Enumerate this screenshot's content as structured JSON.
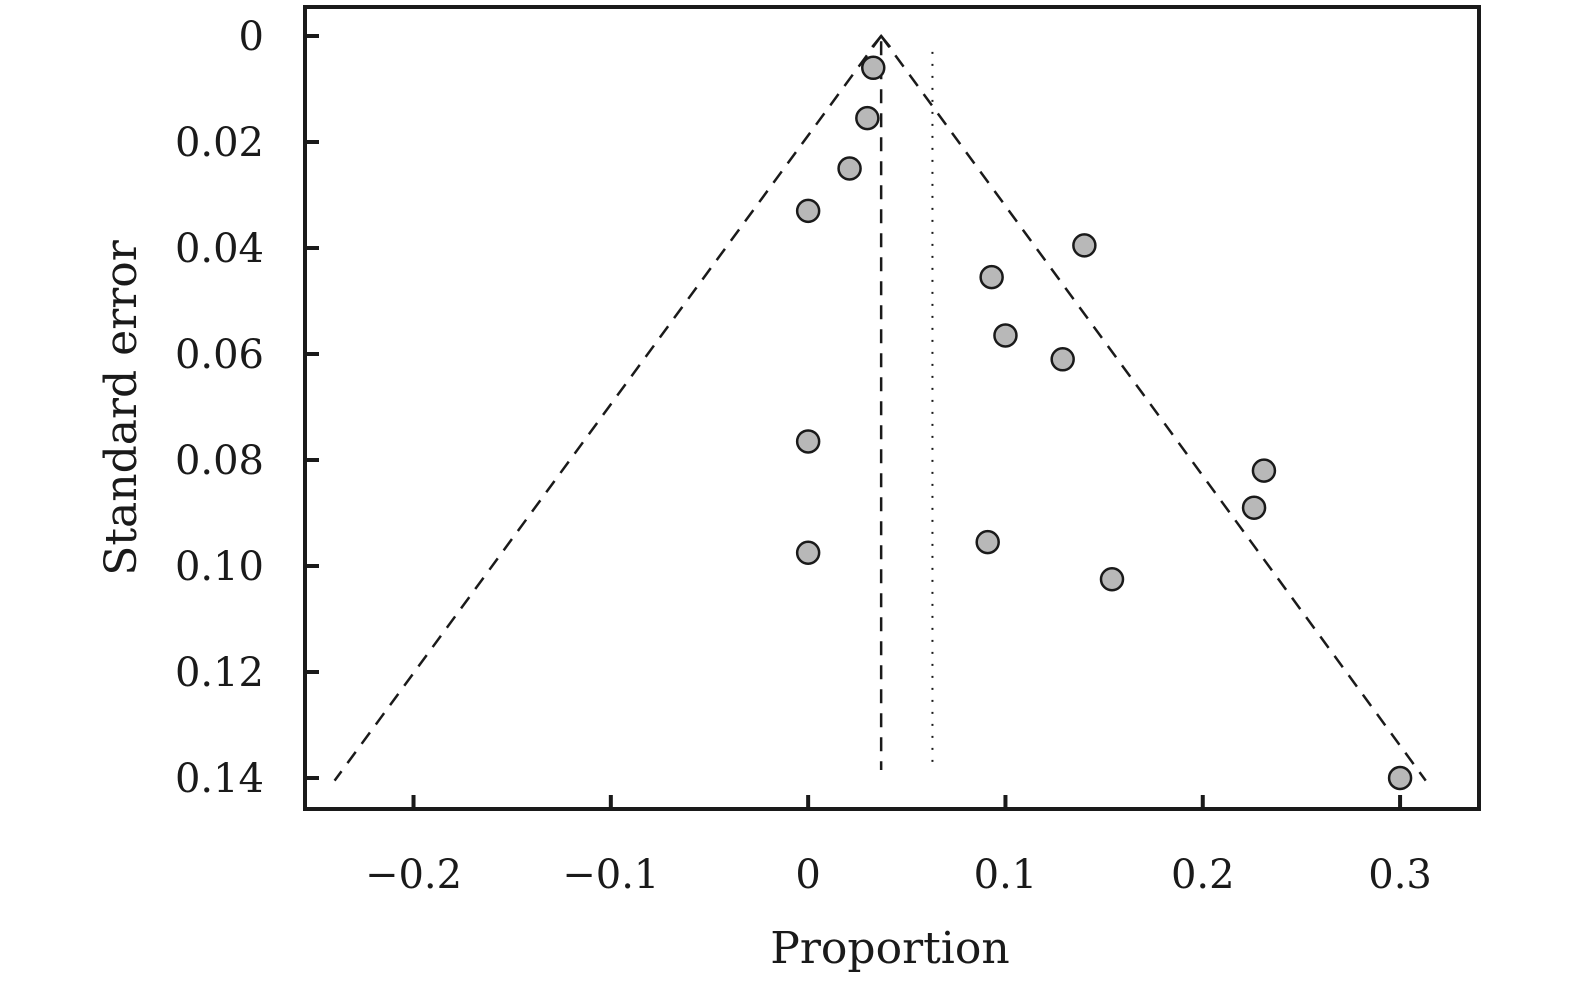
{
  "chart_data": {
    "type": "scatter",
    "title": "",
    "xlabel": "Proportion",
    "ylabel": "Standard error",
    "xlim": [
      -0.255,
      0.34
    ],
    "ylim": [
      0,
      0.146
    ],
    "y_inverted": true,
    "grid": false,
    "x_ticks": [
      {
        "value": -0.2,
        "label": "−0.2"
      },
      {
        "value": -0.1,
        "label": "−0.1"
      },
      {
        "value": 0,
        "label": "0"
      },
      {
        "value": 0.1,
        "label": "0.1"
      },
      {
        "value": 0.2,
        "label": "0.2"
      },
      {
        "value": 0.3,
        "label": "0.3"
      }
    ],
    "y_ticks": [
      {
        "value": 0,
        "label": "0"
      },
      {
        "value": 0.02,
        "label": "0.02"
      },
      {
        "value": 0.04,
        "label": "0.04"
      },
      {
        "value": 0.06,
        "label": "0.06"
      },
      {
        "value": 0.08,
        "label": "0.08"
      },
      {
        "value": 0.1,
        "label": "0.10"
      },
      {
        "value": 0.12,
        "label": "0.12"
      },
      {
        "value": 0.14,
        "label": "0.14"
      }
    ],
    "points": [
      {
        "x": 0.033,
        "y": 0.006
      },
      {
        "x": 0.03,
        "y": 0.0155
      },
      {
        "x": 0.021,
        "y": 0.025
      },
      {
        "x": 0.0,
        "y": 0.033
      },
      {
        "x": 0.14,
        "y": 0.0395
      },
      {
        "x": 0.093,
        "y": 0.0455
      },
      {
        "x": 0.1,
        "y": 0.0565
      },
      {
        "x": 0.129,
        "y": 0.061
      },
      {
        "x": 0.0,
        "y": 0.0765
      },
      {
        "x": 0.231,
        "y": 0.082
      },
      {
        "x": 0.226,
        "y": 0.089
      },
      {
        "x": 0.091,
        "y": 0.0955
      },
      {
        "x": 0.0,
        "y": 0.0975
      },
      {
        "x": 0.154,
        "y": 0.1025
      },
      {
        "x": 0.3,
        "y": 0.14
      }
    ],
    "pooled_estimate": 0.037,
    "reference_line": 0.063,
    "funnel_lines": [
      {
        "name": "left",
        "x": [
          0.037,
          -0.24
        ],
        "y": [
          0,
          0.1405
        ]
      },
      {
        "name": "right",
        "x": [
          0.037,
          0.313
        ],
        "y": [
          0,
          0.1405
        ]
      }
    ],
    "marker_color": "#b8b8b8",
    "line_color": "#1a1a1a"
  }
}
